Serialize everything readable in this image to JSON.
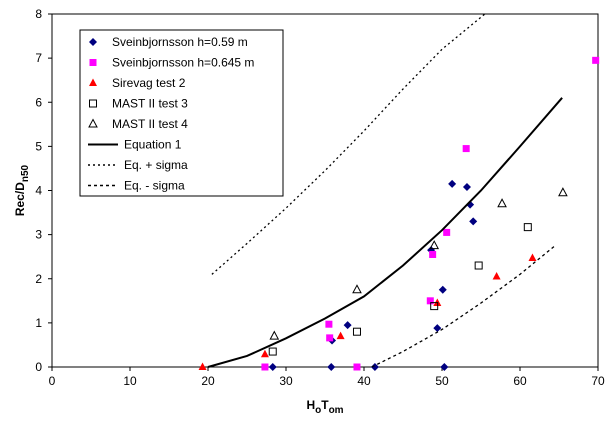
{
  "chart_data": {
    "type": "scatter",
    "xlabel": [
      "H",
      "o",
      "T",
      "om"
    ],
    "ylabel": [
      "Rec/D",
      "n50"
    ],
    "xlim": [
      0,
      70
    ],
    "xticks": [
      0,
      10,
      20,
      30,
      40,
      50,
      60,
      70
    ],
    "ylim": [
      0,
      8
    ],
    "yticks": [
      0,
      1,
      2,
      3,
      4,
      5,
      6,
      7,
      8
    ],
    "grid": false,
    "legend": "upper left",
    "series": [
      {
        "name": "Sveinbjornsson h=0.59 m",
        "color": "#000080",
        "marker": "diamond",
        "x": [
          28.3,
          35.8,
          35.9,
          37.9,
          41.4,
          48.6,
          49.4,
          50.1,
          51.3,
          50.3,
          53.2,
          53.6,
          54.0
        ],
        "values": [
          0,
          0,
          0.6,
          0.95,
          0,
          2.65,
          0.88,
          1.75,
          4.15,
          0,
          4.08,
          3.68,
          3.3
        ]
      },
      {
        "name": "Sveinbjornsson h=0.645 m",
        "color": "#ff00ff",
        "marker": "filled-square",
        "x": [
          27.3,
          35.5,
          35.6,
          39.1,
          48.8,
          48.5,
          50.6,
          53.1,
          69.7
        ],
        "values": [
          0,
          0.97,
          0.66,
          0,
          2.55,
          1.5,
          3.05,
          4.95,
          6.95
        ]
      },
      {
        "name": "Sirevag test 2",
        "color": "#ff0000",
        "marker": "filled-triangle",
        "x": [
          19.3,
          27.3,
          37.0,
          49.4,
          57.0,
          61.6
        ],
        "values": [
          0,
          0.29,
          0.7,
          1.45,
          2.05,
          2.47
        ]
      },
      {
        "name": "MAST II test 3",
        "color": "#000000",
        "marker": "open-square",
        "x": [
          28.3,
          39.1,
          49.0,
          54.7,
          61.0
        ],
        "values": [
          0.35,
          0.8,
          1.38,
          2.3,
          3.17
        ]
      },
      {
        "name": "MAST II test 4",
        "color": "#000000",
        "marker": "open-triangle",
        "x": [
          28.5,
          39.1,
          49.0,
          57.7,
          65.5
        ],
        "values": [
          0.7,
          1.75,
          2.75,
          3.7,
          3.95
        ]
      },
      {
        "name": "Equation 1",
        "color": "#000000",
        "line": "solid",
        "x": [
          20,
          25,
          30,
          35,
          40,
          45,
          50,
          55,
          60,
          65.4
        ],
        "values": [
          0,
          0.25,
          0.65,
          1.1,
          1.6,
          2.3,
          3.1,
          4.0,
          5.0,
          6.1
        ]
      },
      {
        "name": "Eq. + sigma",
        "color": "#000000",
        "line": "dotted",
        "x": [
          20.5,
          25,
          30,
          35,
          40,
          45,
          50,
          55.5
        ],
        "values": [
          2.1,
          2.8,
          3.6,
          4.45,
          5.35,
          6.3,
          7.2,
          8
        ]
      },
      {
        "name": "Eq. - sigma",
        "color": "#000000",
        "line": "dashed",
        "x": [
          41,
          45,
          50,
          55,
          60,
          64.5
        ],
        "values": [
          0,
          0.35,
          0.85,
          1.45,
          2.1,
          2.75
        ]
      }
    ]
  }
}
